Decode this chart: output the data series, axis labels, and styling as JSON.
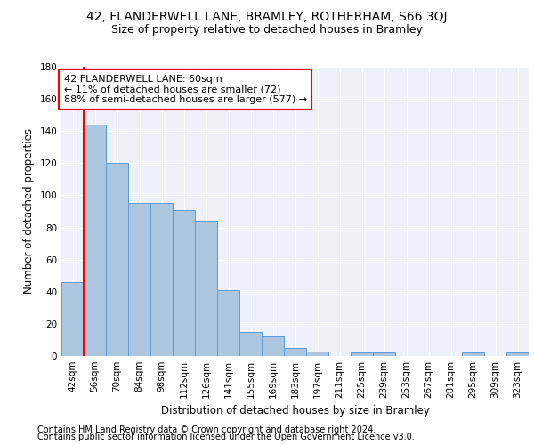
{
  "title1": "42, FLANDERWELL LANE, BRAMLEY, ROTHERHAM, S66 3QJ",
  "title2": "Size of property relative to detached houses in Bramley",
  "xlabel": "Distribution of detached houses by size in Bramley",
  "ylabel": "Number of detached properties",
  "footnote1": "Contains HM Land Registry data © Crown copyright and database right 2024.",
  "footnote2": "Contains public sector information licensed under the Open Government Licence v3.0.",
  "categories": [
    "42sqm",
    "56sqm",
    "70sqm",
    "84sqm",
    "98sqm",
    "112sqm",
    "126sqm",
    "141sqm",
    "155sqm",
    "169sqm",
    "183sqm",
    "197sqm",
    "211sqm",
    "225sqm",
    "239sqm",
    "253sqm",
    "267sqm",
    "281sqm",
    "295sqm",
    "309sqm",
    "323sqm"
  ],
  "values": [
    46,
    144,
    120,
    95,
    95,
    91,
    84,
    41,
    15,
    12,
    5,
    3,
    0,
    2,
    2,
    0,
    0,
    0,
    2,
    0,
    2
  ],
  "bar_color": "#adc6e0",
  "bar_edge_color": "#5b9bd5",
  "property_line_x": 0.5,
  "property_line_color": "red",
  "annotation_line1": "42 FLANDERWELL LANE: 60sqm",
  "annotation_line2": "← 11% of detached houses are smaller (72)",
  "annotation_line3": "88% of semi-detached houses are larger (577) →",
  "annotation_box_color": "white",
  "annotation_box_edge": "red",
  "ylim": [
    0,
    180
  ],
  "yticks": [
    0,
    20,
    40,
    60,
    80,
    100,
    120,
    140,
    160,
    180
  ],
  "background_color": "#eef2f8",
  "grid_color": "#ffffff",
  "title1_fontsize": 10,
  "title2_fontsize": 9,
  "axis_label_fontsize": 8.5,
  "tick_fontsize": 7.5,
  "annotation_fontsize": 8,
  "footnote_fontsize": 7
}
